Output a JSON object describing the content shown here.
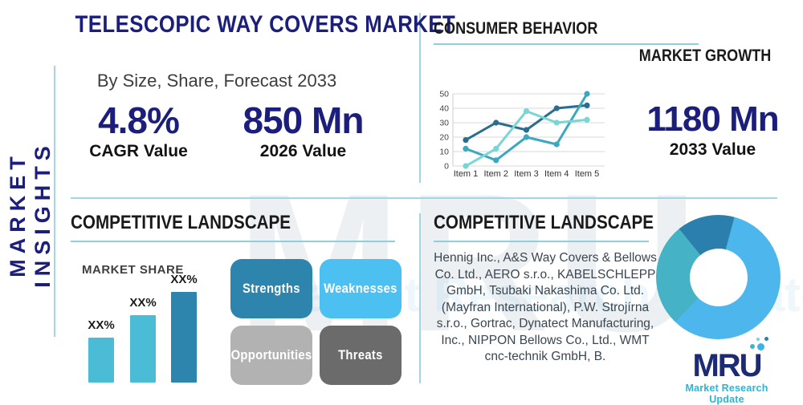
{
  "page": {
    "title": "TELESCOPIC WAY COVERS MARKET",
    "subtitle": "By Size, Share, Forecast 2033",
    "side_label": "MARKET INSIGHTS"
  },
  "sections": {
    "consumer_behavior": "CONSUMER BEHAVIOR",
    "market_growth": "MARKET GROWTH",
    "competitive_landscape_left": "COMPETITIVE LANDSCAPE",
    "competitive_landscape_right": "COMPETITIVE LANDSCAPE",
    "market_share": "MARKET SHARE"
  },
  "stats": {
    "cagr": {
      "value": "4.8%",
      "label": "CAGR Value"
    },
    "v2026": {
      "value": "850 Mn",
      "label": "2026 Value"
    },
    "v2033": {
      "value": "1180 Mn",
      "label": "2033 Value"
    }
  },
  "swot": [
    {
      "label": "Strengths",
      "color": "#2d85ad"
    },
    {
      "label": "Weaknesses",
      "color": "#4cc0f0"
    },
    {
      "label": "Opportunities",
      "color": "#b2b2b2"
    },
    {
      "label": "Threats",
      "color": "#6b6b6b"
    }
  ],
  "companies": "Hennig Inc., A&S Way Covers & Bellows Co. Ltd., AERO s.r.o., KABELSCHLEPP GmbH, Tsubaki Nakashima Co. Ltd. (Mayfran International), P.W. Strojírna s.r.o., Gortrac, Dynatect Manufacturing, Inc., NIPPON Bellows Co., Ltd., WMT cnc-technik GmbH, B.",
  "logo": {
    "text": "MRU",
    "tagline": "Market Research Update"
  },
  "colors": {
    "accent_navy": "#1b1f7b",
    "divider_teal": "#a3d6e2",
    "underline_teal": "#8ecfdd"
  },
  "chart_data": [
    {
      "id": "market_growth_line",
      "type": "line",
      "title": "MARKET GROWTH",
      "x": [
        "Item 1",
        "Item 2",
        "Item 3",
        "Item 4",
        "Item 5"
      ],
      "ylim": [
        0,
        50
      ],
      "yticks": [
        0,
        10,
        20,
        30,
        40,
        50
      ],
      "grid": true,
      "legend_position": "none",
      "series": [
        {
          "name": "series-dark",
          "color": "#2a6d8f",
          "values": [
            18,
            30,
            25,
            40,
            42
          ]
        },
        {
          "name": "series-teal",
          "color": "#3ba8bf",
          "values": [
            12,
            4,
            20,
            15,
            50
          ]
        },
        {
          "name": "series-aqua",
          "color": "#79d6d4",
          "values": [
            0,
            12,
            38,
            30,
            32
          ]
        }
      ]
    },
    {
      "id": "market_share_bar",
      "type": "bar",
      "title": "MARKET SHARE",
      "categories": [
        "",
        "",
        ""
      ],
      "labels": [
        "XX%",
        "XX%",
        "XX%"
      ],
      "values": [
        50,
        74,
        100
      ],
      "colors": [
        "#4bbcd6",
        "#4bbcd6",
        "#2d85ad"
      ],
      "ylabel": "",
      "xlabel": ""
    },
    {
      "id": "landscape_donut",
      "type": "pie",
      "labels": [
        "",
        "",
        ""
      ],
      "values": [
        58,
        27,
        15
      ],
      "colors": [
        "#4db6ec",
        "#45b2c6",
        "#2b7fad"
      ],
      "donut": true
    }
  ]
}
